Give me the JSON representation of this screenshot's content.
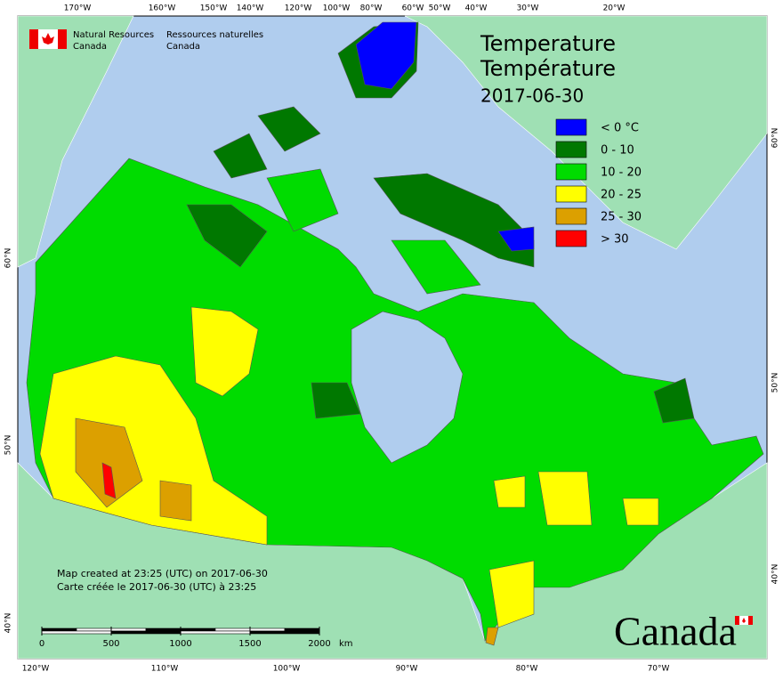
{
  "header": {
    "org_en": [
      "Natural Resources",
      "Canada"
    ],
    "org_fr": [
      "Ressources naturelles",
      "Canada"
    ]
  },
  "title": [
    "Temperature",
    "Température"
  ],
  "date": "2017-06-30",
  "legend": [
    {
      "label": "< 0 °C",
      "color": "#0000ff"
    },
    {
      "label": "0 - 10",
      "color": "#007800"
    },
    {
      "label": "10 - 20",
      "color": "#00dc00"
    },
    {
      "label": "20 - 25",
      "color": "#ffff00"
    },
    {
      "label": "25 - 30",
      "color": "#dca000"
    },
    {
      "label": "> 30",
      "color": "#ff0000"
    }
  ],
  "credits": [
    "Map created at 23:25 (UTC) on 2017-06-30",
    "Carte créée le 2017-06-30 (UTC) à 23:25"
  ],
  "scale": {
    "ticks": [
      0,
      500,
      1000,
      1500,
      2000
    ],
    "unit": "km"
  },
  "graticule": {
    "top": [
      "170°W",
      "160°W",
      "150°W",
      "140°W",
      "120°W",
      "100°W",
      "80°W",
      "60°W",
      "50°W",
      "40°W",
      "30°W",
      "20°W"
    ],
    "bottom": [
      "120°W",
      "110°W",
      "100°W",
      "90°W",
      "80°W",
      "70°W"
    ],
    "left": [
      "60°N",
      "50°N",
      "40°N"
    ],
    "right": [
      "60°N",
      "50°N",
      "40°N"
    ]
  },
  "wordmark": "Canada"
}
